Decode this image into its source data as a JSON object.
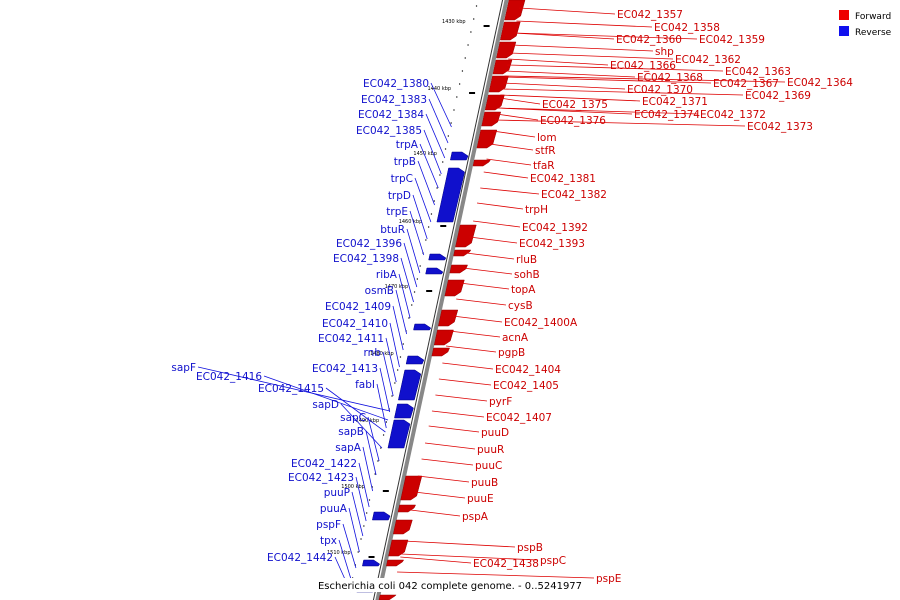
{
  "title": "Escherichia coli 042 complete genome. - 0..5241977",
  "legend": [
    {
      "label": "Forward",
      "color": "#ee0000"
    },
    {
      "label": "Reverse",
      "color": "#1010ee"
    }
  ],
  "ticks": [
    "1430 kbp",
    "1440 kbp",
    "1450 kbp",
    "1460 kbp",
    "1470 kbp",
    "1480 kbp",
    "1490 kbp",
    "1500 kbp",
    "1510 kbp"
  ],
  "forward_genes": [
    "EC042_1357",
    "EC042_1358",
    "EC042_1360",
    "EC042_1359",
    "shp",
    "EC042_1362",
    "EC042_1366",
    "EC042_1363",
    "EC042_1368",
    "EC042_1367",
    "EC042_1364",
    "EC042_1370",
    "EC042_1369",
    "EC042_1371",
    "EC042_1375",
    "EC042_1374",
    "EC042_1372",
    "EC042_1376",
    "EC042_1373",
    "lom",
    "stfR",
    "tfaR",
    "EC042_1381",
    "EC042_1382",
    "trpH",
    "EC042_1392",
    "EC042_1393",
    "rluB",
    "sohB",
    "topA",
    "cysB",
    "EC042_1400A",
    "acnA",
    "pgpB",
    "EC042_1404",
    "EC042_1405",
    "pyrF",
    "EC042_1407",
    "puuD",
    "puuR",
    "puuC",
    "puuB",
    "puuE",
    "pspA",
    "pspB",
    "EC042_1438",
    "pspC",
    "pspE"
  ],
  "reverse_genes": [
    "EC042_1380",
    "EC042_1383",
    "EC042_1384",
    "EC042_1385",
    "trpA",
    "trpB",
    "trpC",
    "trpD",
    "trpE",
    "btuR",
    "EC042_1396",
    "EC042_1398",
    "ribA",
    "osmB",
    "EC042_1409",
    "EC042_1410",
    "EC042_1411",
    "rnb",
    "EC042_1413",
    "sapF",
    "EC042_1416",
    "fabI",
    "EC042_1415",
    "sapD",
    "sapC",
    "sapB",
    "sapA",
    "EC042_1422",
    "EC042_1423",
    "puuP",
    "puuA",
    "pspF",
    "tpx",
    "EC042_1442"
  ]
}
